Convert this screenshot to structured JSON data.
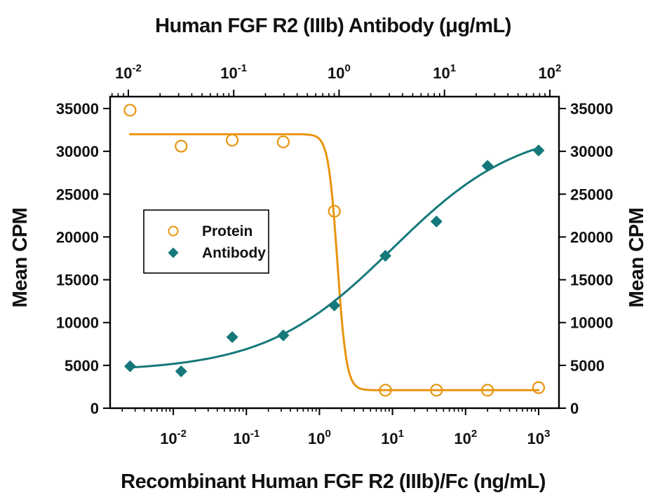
{
  "figure_title": "Human FGF R2 (IIIb) Antibody (μg/mL)",
  "chart_data": {
    "type": "scatter",
    "subtype": "dose-response-neutralization",
    "grid": false,
    "legend_position": "upper-left-inside",
    "x_axis_top": {
      "title": "Human FGF R2 (IIIb) Antibody (μg/mL)",
      "scale": "log",
      "unit": "μg/mL",
      "range_log": [
        -2.173,
        2.087
      ],
      "major_exponents": [
        -2,
        -1,
        0,
        1,
        2
      ],
      "tick_label_format": "10^n"
    },
    "x_axis_bottom": {
      "title": "Recombinant Human FGF R2 (IIIb)/Fc (ng/mL)",
      "scale": "log",
      "unit": "ng/mL",
      "range_log": [
        -2.865,
        3.279
      ],
      "major_exponents": [
        -2,
        -1,
        0,
        1,
        2,
        3
      ],
      "tick_label_format": "10^n"
    },
    "y_axis": {
      "title": "Mean CPM",
      "title_right": "Mean CPM",
      "ticks": [
        0,
        5000,
        10000,
        15000,
        20000,
        25000,
        30000,
        35000
      ],
      "range": [
        0,
        36390
      ]
    },
    "series": [
      {
        "name": "Protein",
        "marker": "open-circle",
        "color": "#E8940E",
        "x_axis": "bottom",
        "x_ng_ml": [
          0.00256,
          0.0128,
          0.064,
          0.32,
          1.6,
          8,
          40,
          200,
          1000
        ],
        "y_cpm": [
          34800,
          30600,
          31300,
          31100,
          23000,
          2100,
          2100,
          2100,
          2400
        ],
        "fit": {
          "model": "4PL",
          "response": "decreasing",
          "top": 32000,
          "bottom": 2100,
          "ec50_ng_ml": 1.76,
          "hill": 7
        }
      },
      {
        "name": "Antibody",
        "marker": "filled-diamond",
        "color": "#15787A",
        "x_axis": "top",
        "x_ug_ml_est": [
          0.011,
          0.033,
          0.1,
          0.3,
          0.9,
          2.7,
          8.1,
          24,
          73
        ],
        "x_bottom_equiv_ng_ml": [
          0.00256,
          0.0128,
          0.064,
          0.32,
          1.6,
          8,
          40,
          200,
          1000
        ],
        "y_cpm": [
          4900,
          4300,
          8300,
          8500,
          12000,
          17800,
          21800,
          28300,
          30100
        ],
        "fit": {
          "model": "4PL",
          "response": "increasing",
          "top": 33000,
          "bottom": 4300,
          "ec50_ng_ml": 10,
          "hill": 0.5
        }
      }
    ]
  },
  "colors": {
    "protein": "#E8940E",
    "antibody": "#15787A",
    "axis": "#000000",
    "background": "#ffffff"
  }
}
